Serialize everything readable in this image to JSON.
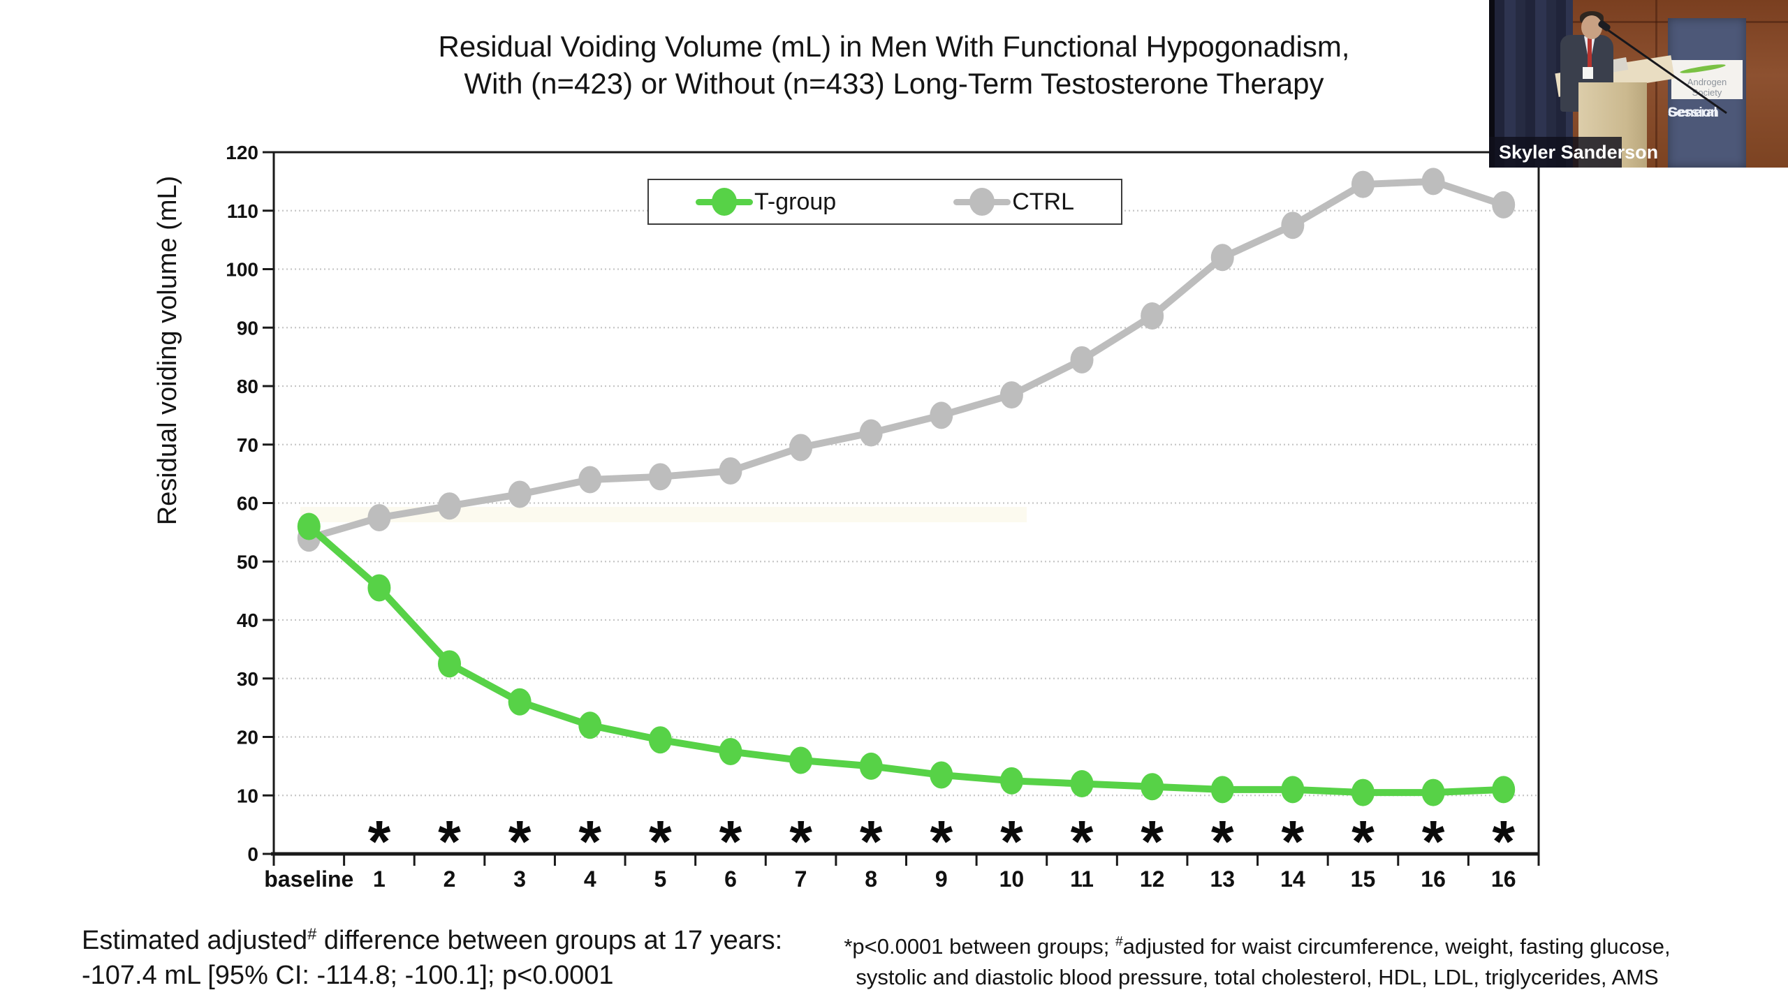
{
  "slide": {
    "title_line1": "Residual Voiding Volume (mL) in Men With Functional Hypogonadism,",
    "title_line2": "With (n=423) or Without (n=433) Long-Term Testosterone Therapy"
  },
  "chart_data": {
    "type": "line",
    "title": "Residual Voiding Volume (mL) in Men With Functional Hypogonadism, With (n=423) or Without (n=433) Long-Term Testosterone Therapy",
    "ylabel": "Residual voiding volume (mL)",
    "xlabel": "",
    "ylim": [
      0,
      120
    ],
    "ytick_step": 10,
    "grid": true,
    "legend_position": "top-center",
    "categories": [
      "baseline",
      "1",
      "2",
      "3",
      "4",
      "5",
      "6",
      "7",
      "8",
      "9",
      "10",
      "11",
      "12",
      "13",
      "14",
      "15",
      "16",
      "16"
    ],
    "series": [
      {
        "name": "T-group",
        "color": "#57d247",
        "values": [
          56,
          45.5,
          32.5,
          26,
          22,
          19.5,
          17.5,
          16,
          15,
          13.5,
          12.5,
          12,
          11.5,
          11,
          11,
          10.5,
          10.5,
          11
        ]
      },
      {
        "name": "CTRL",
        "color": "#bdbdbd",
        "values": [
          54,
          57.5,
          59.5,
          61.5,
          64,
          64.5,
          65.5,
          69.5,
          72,
          75,
          78.5,
          84.5,
          92,
          102,
          107.5,
          114.5,
          115,
          111
        ]
      }
    ],
    "significance": [
      "",
      "*",
      "*",
      "*",
      "*",
      "*",
      "*",
      "*",
      "*",
      "*",
      "*",
      "*",
      "*",
      "*",
      "*",
      "*",
      "*",
      "*"
    ]
  },
  "y_axis": {
    "title": "Residual voiding volume (mL)",
    "ticks": [
      0,
      10,
      20,
      30,
      40,
      50,
      60,
      70,
      80,
      90,
      100,
      110,
      120
    ]
  },
  "legend": {
    "items": [
      {
        "label": "T-group",
        "color": "#57d247"
      },
      {
        "label": "CTRL",
        "color": "#bdbdbd"
      }
    ]
  },
  "footnotes": {
    "left_line1": [
      {
        "t": "Estimated adjusted"
      },
      {
        "sup": "#"
      },
      {
        "t": " difference between groups at 17 years:"
      }
    ],
    "left_line2": "-107.4 mL [95% CI: -114.8; -100.1]; p<0.0001",
    "right_line1": [
      {
        "t": "*p<0.0001 between groups; "
      },
      {
        "sup": "#"
      },
      {
        "t": "adjusted for waist circumference, weight, fasting glucose,"
      }
    ],
    "right_line2": "systolic and diastolic blood pressure, total cholesterol, HDL, LDL, triglycerides, AMS"
  },
  "video": {
    "speaker_name": "Skyler Sanderson",
    "banner_logo": "Androgen Society",
    "banner_text_line1": "General",
    "banner_text_line2": "Session"
  },
  "colors": {
    "t_group": "#57d247",
    "ctrl": "#bdbdbd",
    "gridline": "#c6c6c6",
    "axis": "#1a1a1a"
  }
}
